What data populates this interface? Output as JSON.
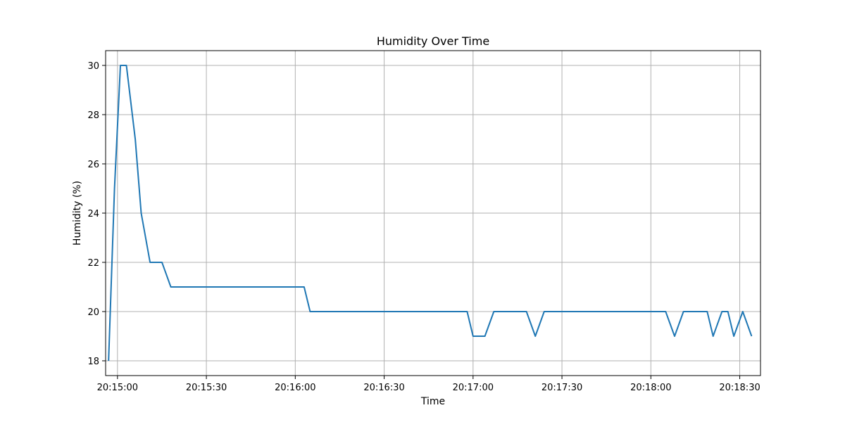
{
  "chart_data": {
    "type": "line",
    "title": "Humidity Over Time",
    "xlabel": "Time",
    "ylabel": "Humidity (%)",
    "grid": true,
    "xlim": [
      "20:14:56",
      "20:18:37"
    ],
    "ylim": [
      17.4,
      30.6
    ],
    "x_ticks": [
      "20:15:00",
      "20:15:30",
      "20:16:00",
      "20:16:30",
      "20:17:00",
      "20:17:30",
      "20:18:00",
      "20:18:30"
    ],
    "y_ticks": [
      18,
      20,
      22,
      24,
      26,
      28,
      30
    ],
    "colors": {
      "line": "#1f77b4",
      "grid": "#b0b0b0",
      "axes": "#000000"
    },
    "series": [
      {
        "x": [
          "20:14:57",
          "20:14:59",
          "20:15:01",
          "20:15:03",
          "20:15:06",
          "20:15:08",
          "20:15:11",
          "20:15:15",
          "20:15:18",
          "20:15:20",
          "20:15:30",
          "20:15:40",
          "20:15:50",
          "20:16:00",
          "20:16:03",
          "20:16:05",
          "20:16:20",
          "20:16:40",
          "20:16:58",
          "20:17:00",
          "20:17:04",
          "20:17:07",
          "20:17:18",
          "20:17:21",
          "20:17:24",
          "20:17:40",
          "20:18:00",
          "20:18:05",
          "20:18:08",
          "20:18:11",
          "20:18:19",
          "20:18:21",
          "20:18:24",
          "20:18:26",
          "20:18:28",
          "20:18:31",
          "20:18:34"
        ],
        "values": [
          18,
          25,
          30,
          30,
          27,
          24,
          22,
          22,
          21,
          21,
          21,
          21,
          21,
          21,
          21,
          20,
          20,
          20,
          20,
          19,
          19,
          20,
          20,
          19,
          20,
          20,
          20,
          20,
          19,
          20,
          20,
          19,
          20,
          20,
          19,
          20,
          19
        ]
      }
    ]
  }
}
